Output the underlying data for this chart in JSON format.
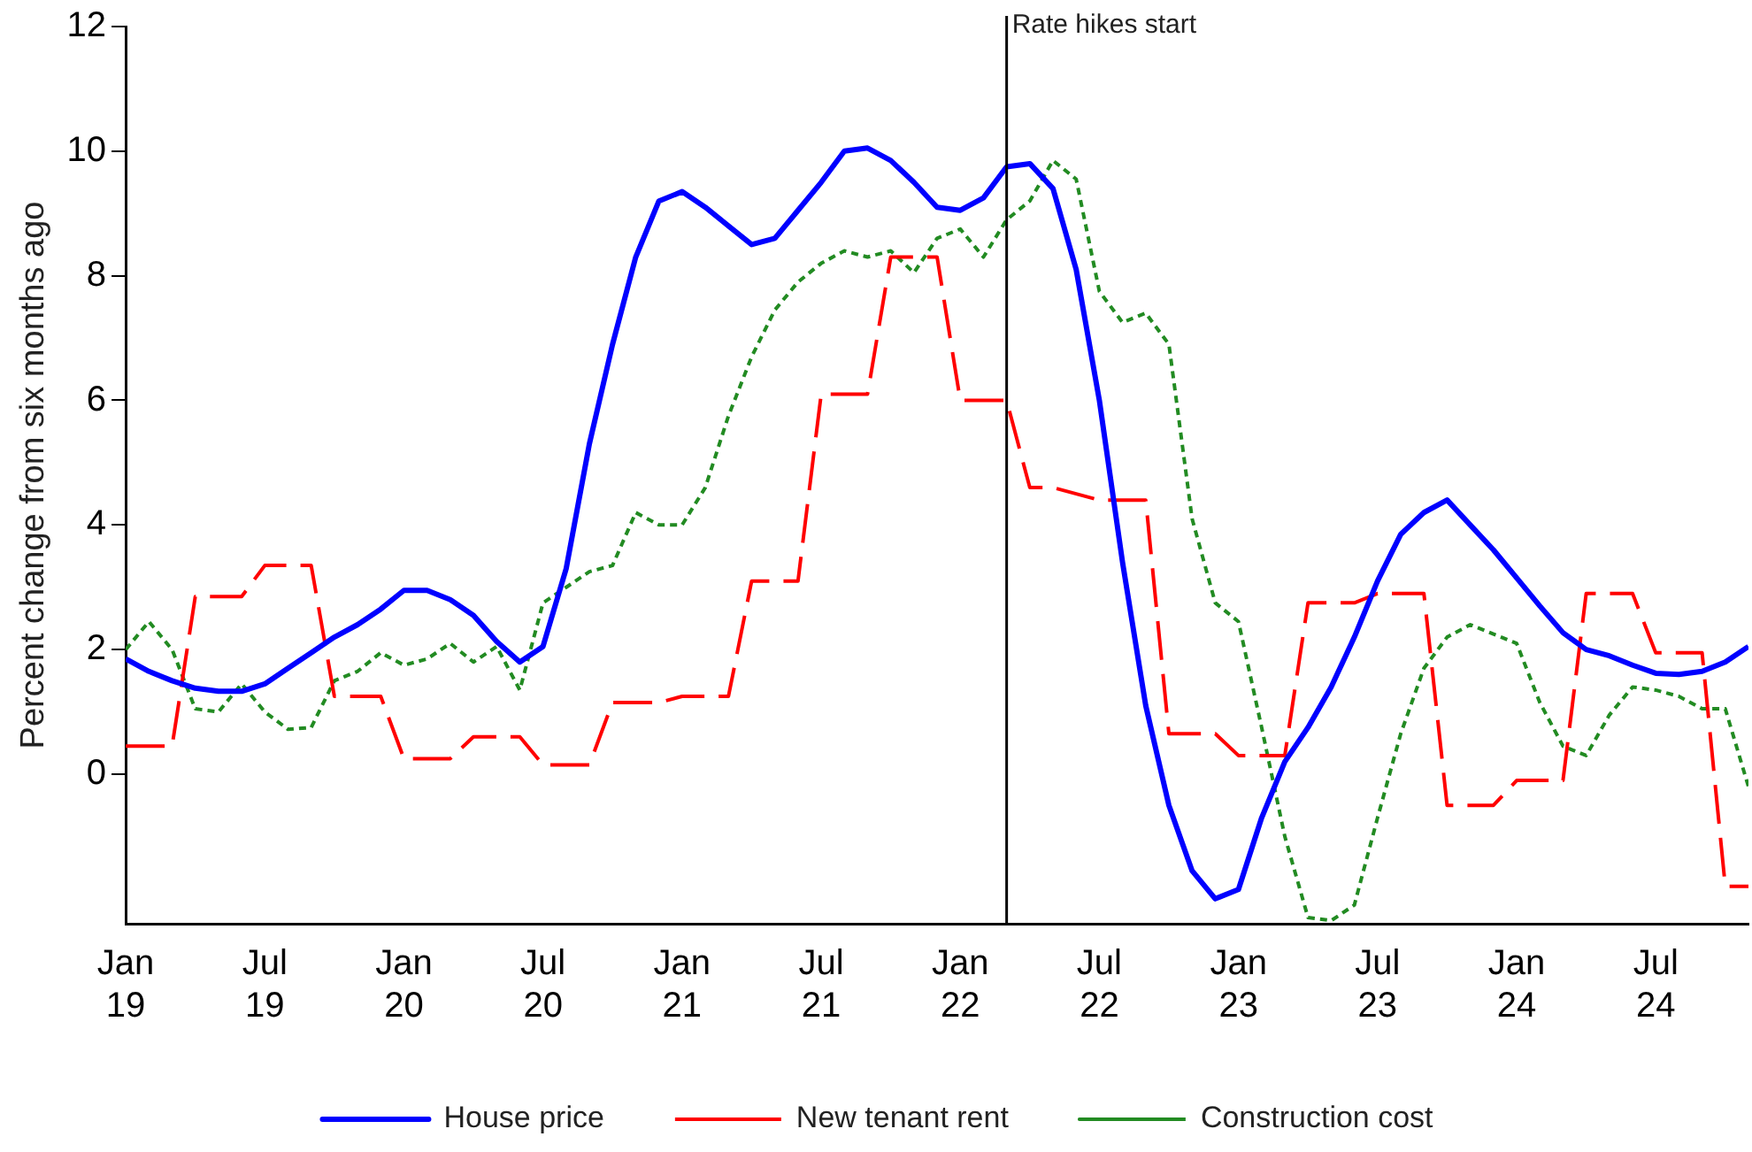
{
  "chart_data": {
    "type": "line",
    "ylabel": "Percent change from six months ago",
    "x": [
      "2019-01",
      "2019-02",
      "2019-03",
      "2019-04",
      "2019-05",
      "2019-06",
      "2019-07",
      "2019-08",
      "2019-09",
      "2019-10",
      "2019-11",
      "2019-12",
      "2020-01",
      "2020-02",
      "2020-03",
      "2020-04",
      "2020-05",
      "2020-06",
      "2020-07",
      "2020-08",
      "2020-09",
      "2020-10",
      "2020-11",
      "2020-12",
      "2021-01",
      "2021-02",
      "2021-03",
      "2021-04",
      "2021-05",
      "2021-06",
      "2021-07",
      "2021-08",
      "2021-09",
      "2021-10",
      "2021-11",
      "2021-12",
      "2022-01",
      "2022-02",
      "2022-03",
      "2022-04",
      "2022-05",
      "2022-06",
      "2022-07",
      "2022-08",
      "2022-09",
      "2022-10",
      "2022-11",
      "2022-12",
      "2023-01",
      "2023-02",
      "2023-03",
      "2023-04",
      "2023-05",
      "2023-06",
      "2023-07",
      "2023-08",
      "2023-09",
      "2023-10",
      "2023-11",
      "2023-12",
      "2024-01",
      "2024-02",
      "2024-03",
      "2024-04",
      "2024-05",
      "2024-06",
      "2024-07",
      "2024-08",
      "2024-09",
      "2024-10",
      "2024-11"
    ],
    "series": [
      {
        "name": "House price",
        "color": "#0000ff",
        "line_style": "solid",
        "values": [
          1.85,
          1.65,
          1.5,
          1.38,
          1.33,
          1.33,
          1.45,
          1.7,
          1.95,
          2.2,
          2.4,
          2.65,
          2.95,
          2.95,
          2.8,
          2.55,
          2.13,
          1.8,
          2.05,
          3.3,
          5.3,
          6.9,
          8.3,
          9.2,
          9.35,
          9.1,
          8.8,
          8.5,
          8.6,
          9.05,
          9.5,
          10.0,
          10.05,
          9.85,
          9.5,
          9.1,
          9.05,
          9.25,
          9.75,
          9.8,
          9.4,
          8.1,
          6.0,
          3.4,
          1.1,
          -0.5,
          -1.55,
          -2.0,
          -1.85,
          -0.7,
          0.2,
          0.75,
          1.4,
          2.2,
          3.1,
          3.85,
          4.2,
          4.4,
          4.0,
          3.6,
          3.15,
          2.7,
          2.27,
          2.0,
          1.9,
          1.75,
          1.62,
          1.6,
          1.65,
          1.8,
          2.05
        ]
      },
      {
        "name": "New tenant rent",
        "color": "#ff0000",
        "line_style": "dashed",
        "values": [
          0.45,
          0.45,
          0.45,
          2.85,
          2.85,
          2.85,
          3.35,
          3.35,
          3.35,
          1.25,
          1.25,
          1.25,
          0.25,
          0.25,
          0.25,
          0.6,
          0.6,
          0.6,
          0.15,
          0.15,
          0.15,
          1.15,
          1.15,
          1.15,
          1.25,
          1.25,
          1.25,
          3.1,
          3.1,
          3.1,
          6.1,
          6.1,
          6.1,
          8.3,
          8.3,
          8.3,
          6.0,
          6.0,
          6.0,
          4.6,
          4.6,
          4.5,
          4.4,
          4.4,
          4.4,
          0.65,
          0.65,
          0.65,
          0.3,
          0.3,
          0.3,
          2.75,
          2.75,
          2.75,
          2.9,
          2.9,
          2.9,
          -0.5,
          -0.5,
          -0.5,
          -0.1,
          -0.1,
          -0.1,
          2.9,
          2.9,
          2.9,
          1.95,
          1.95,
          1.95,
          -1.8,
          -1.8
        ]
      },
      {
        "name": "Construction cost",
        "color": "#228b22",
        "line_style": "dotted",
        "values": [
          2.0,
          2.45,
          2.0,
          1.05,
          1.0,
          1.45,
          1.0,
          0.72,
          0.75,
          1.5,
          1.65,
          1.95,
          1.75,
          1.85,
          2.1,
          1.8,
          2.05,
          1.35,
          2.75,
          3.0,
          3.25,
          3.35,
          4.2,
          4.0,
          4.0,
          4.6,
          5.75,
          6.7,
          7.45,
          7.9,
          8.2,
          8.4,
          8.3,
          8.4,
          8.05,
          8.6,
          8.75,
          8.3,
          8.9,
          9.2,
          9.85,
          9.55,
          7.75,
          7.25,
          7.4,
          6.9,
          4.1,
          2.75,
          2.45,
          0.75,
          -1.0,
          -2.3,
          -2.35,
          -2.1,
          -0.7,
          0.65,
          1.7,
          2.2,
          2.4,
          2.25,
          2.1,
          1.15,
          0.45,
          0.3,
          0.95,
          1.4,
          1.35,
          1.25,
          1.05,
          1.05,
          -0.2
        ]
      }
    ],
    "xlim": [
      "2019-01",
      "2024-11"
    ],
    "xticks": [
      {
        "value": "2019-01",
        "label": "Jan 19"
      },
      {
        "value": "2019-07",
        "label": "Jul 19"
      },
      {
        "value": "2020-01",
        "label": "Jan 20"
      },
      {
        "value": "2020-07",
        "label": "Jul 20"
      },
      {
        "value": "2021-01",
        "label": "Jan 21"
      },
      {
        "value": "2021-07",
        "label": "Jul 21"
      },
      {
        "value": "2022-01",
        "label": "Jan 22"
      },
      {
        "value": "2022-07",
        "label": "Jul 22"
      },
      {
        "value": "2023-01",
        "label": "Jan 23"
      },
      {
        "value": "2023-07",
        "label": "Jul 23"
      },
      {
        "value": "2024-01",
        "label": "Jan 24"
      },
      {
        "value": "2024-07",
        "label": "Jul 24"
      }
    ],
    "ylim": [
      -2.4,
      12
    ],
    "yticks": [
      0,
      2,
      4,
      6,
      8,
      10,
      12
    ],
    "ref_lines": [
      {
        "axis": "x",
        "value": "2022-03",
        "label": "Rate hikes start",
        "color": "#000000"
      }
    ],
    "grid": false,
    "legend": "bottom",
    "marker": "none"
  }
}
